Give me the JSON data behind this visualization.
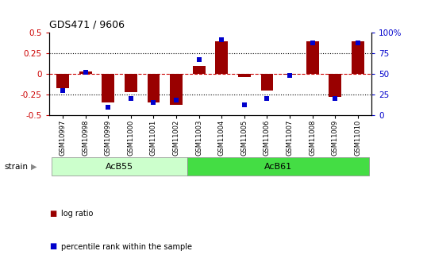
{
  "title": "GDS471 / 9606",
  "samples": [
    "GSM10997",
    "GSM10998",
    "GSM10999",
    "GSM11000",
    "GSM11001",
    "GSM11002",
    "GSM11003",
    "GSM11004",
    "GSM11005",
    "GSM11006",
    "GSM11007",
    "GSM11008",
    "GSM11009",
    "GSM11010"
  ],
  "log_ratio": [
    -0.17,
    0.03,
    -0.35,
    -0.22,
    -0.35,
    -0.38,
    0.1,
    0.4,
    -0.04,
    -0.2,
    -0.01,
    0.4,
    -0.28,
    0.4
  ],
  "percentile_rank": [
    30,
    52,
    10,
    20,
    15,
    18,
    68,
    92,
    12,
    20,
    48,
    88,
    20,
    88
  ],
  "ylim_left": [
    -0.5,
    0.5
  ],
  "ylim_right": [
    0,
    100
  ],
  "yticks_left": [
    -0.5,
    -0.25,
    0,
    0.25,
    0.5
  ],
  "yticks_right": [
    0,
    25,
    50,
    75,
    100
  ],
  "hlines": [
    0.25,
    0,
    -0.25
  ],
  "bar_color": "#990000",
  "scatter_color": "#0000cc",
  "zero_line_color": "#cc0000",
  "dotted_line_color": "#000000",
  "groups": [
    {
      "label": "AcB55",
      "start": 0,
      "end": 6,
      "color": "#ccffcc"
    },
    {
      "label": "AcB61",
      "start": 6,
      "end": 14,
      "color": "#44dd44"
    }
  ],
  "strain_label": "strain",
  "legend_bar_label": "log ratio",
  "legend_scatter_label": "percentile rank within the sample",
  "bar_color_left": "#cc0000",
  "tick_color_right": "#0000cc",
  "background_color": "#ffffff",
  "plot_bg_color": "#ffffff"
}
